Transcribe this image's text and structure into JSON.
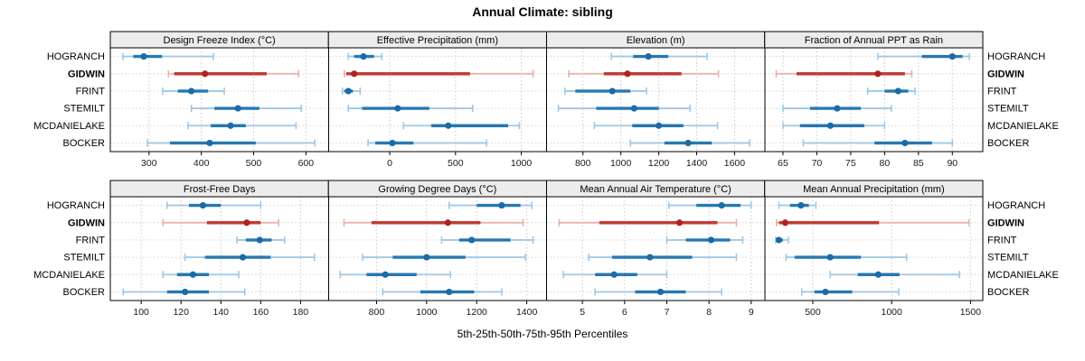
{
  "title": "Annual Climate: sibling",
  "xlabel": "5th-25th-50th-75th-95th Percentiles",
  "sites": [
    {
      "name": "HOGRANCH",
      "highlight": false
    },
    {
      "name": "GIDWIN",
      "highlight": true
    },
    {
      "name": "FRINT",
      "highlight": false
    },
    {
      "name": "STEMILT",
      "highlight": false
    },
    {
      "name": "MCDANIELAKE",
      "highlight": false
    },
    {
      "name": "BOCKER",
      "highlight": false
    }
  ],
  "colors": {
    "series_default": {
      "dot": "#1a6ba6",
      "band": "#2678b2",
      "range": "#a0c8e4"
    },
    "series_highlight": {
      "dot": "#b02120",
      "band": "#c13c34",
      "range": "#e8afa9"
    },
    "grid": "#c9c9c9",
    "row_line": "#d4d4d4",
    "strip_bg": "#ececec",
    "panel_border": "#000000",
    "tick_text": "#1a1a1a"
  },
  "chart_data": {
    "type": "interval-dotplot",
    "layout": "2 rows x 4 columns trellis, shared site list on y axis, independent x scales",
    "percentile_labels": [
      "p5",
      "p25",
      "p50",
      "p75",
      "p95"
    ],
    "legend_position": "none",
    "grid": "dotted vertical at ticks, dotted horizontal per site row",
    "panels": [
      {
        "title": "Design Freeze Index (°C)",
        "ticks": [
          300,
          400,
          500,
          600
        ],
        "domain": [
          226,
          643
        ],
        "series": [
          {
            "site": "HOGRANCH",
            "values": [
              250,
              270,
              290,
              325,
              423
            ]
          },
          {
            "site": "GIDWIN",
            "values": [
              337,
              348,
              407,
              525,
              586
            ]
          },
          {
            "site": "FRINT",
            "values": [
              326,
              355,
              381,
              413,
              444
            ]
          },
          {
            "site": "STEMILT",
            "values": [
              381,
              425,
              470,
              511,
              591
            ]
          },
          {
            "site": "MCDANIELAKE",
            "values": [
              375,
              418,
              456,
              485,
              581
            ]
          },
          {
            "site": "BOCKER",
            "values": [
              297,
              340,
              416,
              504,
              617
            ]
          }
        ]
      },
      {
        "title": "Effective Precipitation (mm)",
        "ticks": [
          0,
          500,
          1000
        ],
        "domain": [
          -466,
          1192
        ],
        "series": [
          {
            "site": "HOGRANCH",
            "values": [
              -315,
              -270,
              -200,
              -120,
              -60
            ]
          },
          {
            "site": "GIDWIN",
            "values": [
              -345,
              -330,
              -270,
              610,
              1090
            ]
          },
          {
            "site": "FRINT",
            "values": [
              -360,
              -345,
              -315,
              -280,
              -225
            ]
          },
          {
            "site": "STEMILT",
            "values": [
              -315,
              -210,
              60,
              300,
              630
            ]
          },
          {
            "site": "MCDANIELAKE",
            "values": [
              105,
              315,
              445,
              900,
              985
            ]
          },
          {
            "site": "BOCKER",
            "values": [
              -165,
              -110,
              20,
              180,
              735
            ]
          }
        ]
      },
      {
        "title": "Elevation (m)",
        "ticks": [
          800,
          1000,
          1200,
          1400,
          1600
        ],
        "domain": [
          608,
          1759
        ],
        "series": [
          {
            "site": "HOGRANCH",
            "values": [
              950,
              1065,
              1145,
              1250,
              1455
            ]
          },
          {
            "site": "GIDWIN",
            "values": [
              725,
              910,
              1035,
              1320,
              1515
            ]
          },
          {
            "site": "FRINT",
            "values": [
              705,
              760,
              955,
              1050,
              1135
            ]
          },
          {
            "site": "STEMILT",
            "values": [
              670,
              870,
              1070,
              1200,
              1365
            ]
          },
          {
            "site": "MCDANIELAKE",
            "values": [
              860,
              1060,
              1200,
              1330,
              1510
            ]
          },
          {
            "site": "BOCKER",
            "values": [
              1050,
              1230,
              1355,
              1480,
              1680
            ]
          }
        ]
      },
      {
        "title": "Fraction of Annual PPT as Rain",
        "ticks": [
          65,
          70,
          75,
          80,
          85,
          90
        ],
        "domain": [
          62.3,
          94.5
        ],
        "series": [
          {
            "site": "HOGRANCH",
            "values": [
              79,
              85.5,
              90,
              91.5,
              92.5
            ]
          },
          {
            "site": "GIDWIN",
            "values": [
              64,
              67,
              79,
              83,
              84
            ]
          },
          {
            "site": "FRINT",
            "values": [
              77.5,
              80,
              82,
              83.5,
              84.5
            ]
          },
          {
            "site": "STEMILT",
            "values": [
              65,
              69,
              73,
              76.5,
              81
            ]
          },
          {
            "site": "MCDANIELAKE",
            "values": [
              65,
              67.5,
              72,
              77,
              80
            ]
          },
          {
            "site": "BOCKER",
            "values": [
              68,
              78.5,
              83,
              87,
              90
            ]
          }
        ]
      },
      {
        "title": "Frost-Free Days",
        "ticks": [
          100,
          120,
          140,
          160,
          180
        ],
        "domain": [
          84.5,
          194
        ],
        "series": [
          {
            "site": "HOGRANCH",
            "values": [
              113,
              124,
              131,
              140,
              160
            ]
          },
          {
            "site": "GIDWIN",
            "values": [
              111,
              133,
              153,
              160,
              169
            ]
          },
          {
            "site": "FRINT",
            "values": [
              148,
              152.5,
              159.5,
              165.5,
              172
            ]
          },
          {
            "site": "STEMILT",
            "values": [
              122,
              132,
              151,
              165,
              187
            ]
          },
          {
            "site": "MCDANIELAKE",
            "values": [
              111,
              118,
              126,
              134,
              149
            ]
          },
          {
            "site": "BOCKER",
            "values": [
              91,
              113,
              122,
              134,
              152
            ]
          }
        ]
      },
      {
        "title": "Growing Degree Days (°C)",
        "ticks": [
          800,
          1000,
          1200,
          1400
        ],
        "domain": [
          608,
          1479
        ],
        "series": [
          {
            "site": "HOGRANCH",
            "values": [
              1090,
              1200,
              1300,
              1375,
              1420
            ]
          },
          {
            "site": "GIDWIN",
            "values": [
              670,
              780,
              1085,
              1215,
              1385
            ]
          },
          {
            "site": "FRINT",
            "values": [
              1060,
              1130,
              1180,
              1335,
              1425
            ]
          },
          {
            "site": "STEMILT",
            "values": [
              745,
              865,
              1000,
              1155,
              1395
            ]
          },
          {
            "site": "MCDANIELAKE",
            "values": [
              655,
              760,
              835,
              960,
              1095
            ]
          },
          {
            "site": "BOCKER",
            "values": [
              825,
              975,
              1090,
              1190,
              1300
            ]
          }
        ]
      },
      {
        "title": "Mean Annual Air Temperature (°C)",
        "ticks": [
          5,
          6,
          7,
          8,
          9
        ],
        "domain": [
          4.15,
          9.32
        ],
        "series": [
          {
            "site": "HOGRANCH",
            "values": [
              7.05,
              7.7,
              8.3,
              8.75,
              9.0
            ]
          },
          {
            "site": "GIDWIN",
            "values": [
              4.45,
              5.4,
              7.3,
              8.2,
              8.65
            ]
          },
          {
            "site": "FRINT",
            "values": [
              7.0,
              7.45,
              8.05,
              8.5,
              8.8
            ]
          },
          {
            "site": "STEMILT",
            "values": [
              5.15,
              5.7,
              6.6,
              7.6,
              8.65
            ]
          },
          {
            "site": "MCDANIELAKE",
            "values": [
              4.55,
              5.3,
              5.75,
              6.3,
              7.0
            ]
          },
          {
            "site": "BOCKER",
            "values": [
              5.3,
              6.25,
              6.85,
              7.45,
              8.3
            ]
          }
        ]
      },
      {
        "title": "Mean Annual Precipitation (mm)",
        "ticks": [
          500,
          1000,
          1500
        ],
        "domain": [
          195,
          1578
        ],
        "series": [
          {
            "site": "HOGRANCH",
            "values": [
              285,
              355,
              425,
              475,
              520
            ]
          },
          {
            "site": "GIDWIN",
            "values": [
              270,
              285,
              325,
              920,
              1490
            ]
          },
          {
            "site": "FRINT",
            "values": [
              265,
              272,
              285,
              310,
              345
            ]
          },
          {
            "site": "STEMILT",
            "values": [
              330,
              385,
              610,
              805,
              1095
            ]
          },
          {
            "site": "MCDANIELAKE",
            "values": [
              610,
              785,
              915,
              1050,
              1430
            ]
          },
          {
            "site": "BOCKER",
            "values": [
              430,
              510,
              580,
              750,
              1045
            ]
          }
        ]
      }
    ]
  }
}
